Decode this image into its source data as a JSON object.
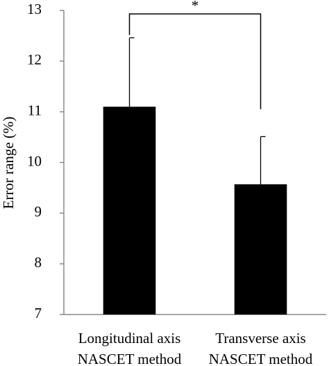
{
  "chart_data": {
    "type": "bar",
    "y_label": "Error range (%)",
    "categories": [
      [
        "Longitudinal axis",
        "NASCET method"
      ],
      [
        "Transverse axis",
        "NASCET method"
      ]
    ],
    "values": [
      11.1,
      9.57
    ],
    "errors": [
      1.36,
      0.94
    ],
    "color": "#000000",
    "ylim": [
      7,
      13
    ],
    "yticks": [
      7,
      8,
      9,
      10,
      11,
      12,
      13
    ],
    "annotation": "*"
  }
}
